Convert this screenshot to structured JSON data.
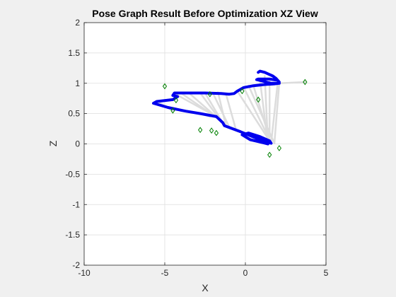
{
  "chart_data": {
    "type": "line",
    "title": "Pose Graph Result Before Optimization XZ View",
    "xlabel": "X",
    "ylabel": "Z",
    "xlim": [
      -10,
      5
    ],
    "ylim": [
      -2,
      2
    ],
    "xticks": [
      -10,
      -5,
      0,
      5
    ],
    "yticks": [
      -2,
      -1.5,
      -1,
      -0.5,
      0,
      0.5,
      1,
      1.5,
      2
    ],
    "xtick_labels": [
      "-10",
      "-5",
      "0",
      "5"
    ],
    "ytick_labels": [
      "-2",
      "-1.5",
      "-1",
      "-0.5",
      "0",
      "0.5",
      "1",
      "1.5",
      "2"
    ],
    "grid": true,
    "colors": {
      "trajectory": "#0000ee",
      "loop_edges": "#dcdcdc",
      "landmarks": "#008000",
      "grid": "#dedede",
      "axes_background": "#ffffff",
      "figure_background": "#f0f0f0"
    },
    "trajectory": {
      "x": [
        1.4,
        1.1,
        0.3,
        -0.2,
        0.2,
        0.9,
        1.5,
        1.6,
        1.0,
        -0.3,
        -1.3,
        -1.4,
        -1.6,
        -1.8,
        -2.8,
        -3.7,
        -4.8,
        -5.7,
        -5.5,
        -4.5,
        -4.2,
        -4.5,
        -4.4,
        -4.0,
        -3.5,
        -2.5,
        -1.5,
        -1.0,
        -0.7,
        -0.5,
        -0.1,
        0.5,
        1.2,
        1.8,
        2.1,
        2.0,
        1.6,
        1.3,
        1.0,
        0.7,
        0.8,
        1.5,
        2.0,
        2.1,
        1.9,
        1.7,
        1.2,
        0.9,
        0.8
      ],
      "z": [
        0.0,
        0.02,
        0.07,
        0.15,
        0.18,
        0.12,
        0.05,
        0.01,
        0.06,
        0.2,
        0.3,
        0.35,
        0.4,
        0.45,
        0.5,
        0.54,
        0.6,
        0.67,
        0.7,
        0.73,
        0.78,
        0.8,
        0.84,
        0.84,
        0.84,
        0.84,
        0.83,
        0.82,
        0.83,
        0.87,
        0.93,
        0.96,
        0.98,
        0.99,
        1.0,
        1.0,
        1.0,
        1.02,
        1.04,
        1.06,
        1.07,
        1.07,
        1.05,
        1.02,
        1.08,
        1.12,
        1.18,
        1.2,
        1.18
      ]
    },
    "loop_edges": [
      {
        "x": [
          -4.4,
          -1.8
        ],
        "z": [
          0.83,
          0.45
        ]
      },
      {
        "x": [
          -4.0,
          -1.6
        ],
        "z": [
          0.84,
          0.4
        ]
      },
      {
        "x": [
          -3.5,
          -1.4
        ],
        "z": [
          0.84,
          0.35
        ]
      },
      {
        "x": [
          -2.8,
          -1.3
        ],
        "z": [
          0.84,
          0.3
        ]
      },
      {
        "x": [
          -2.0,
          -1.0
        ],
        "z": [
          0.83,
          0.28
        ]
      },
      {
        "x": [
          -2.5,
          -1.3
        ],
        "z": [
          0.84,
          0.3
        ]
      },
      {
        "x": [
          -1.2,
          -0.6
        ],
        "z": [
          0.82,
          0.25
        ]
      },
      {
        "x": [
          -0.5,
          1.5
        ],
        "z": [
          0.87,
          0.05
        ]
      },
      {
        "x": [
          -0.1,
          1.6
        ],
        "z": [
          0.93,
          0.02
        ]
      },
      {
        "x": [
          0.2,
          1.8
        ],
        "z": [
          0.96,
          0.01
        ]
      },
      {
        "x": [
          0.5,
          1.6
        ],
        "z": [
          0.96,
          0.0
        ]
      },
      {
        "x": [
          0.9,
          1.4
        ],
        "z": [
          1.07,
          0.0
        ]
      },
      {
        "x": [
          1.2,
          1.4
        ],
        "z": [
          1.12,
          0.02
        ]
      },
      {
        "x": [
          1.5,
          1.5
        ],
        "z": [
          1.07,
          0.05
        ]
      },
      {
        "x": [
          2.0,
          1.6
        ],
        "z": [
          1.0,
          0.02
        ]
      },
      {
        "x": [
          2.1,
          1.8
        ],
        "z": [
          1.0,
          0.01
        ]
      },
      {
        "x": [
          -5.5,
          -4.5
        ],
        "z": [
          0.7,
          0.55
        ]
      },
      {
        "x": [
          -4.8,
          -4.0
        ],
        "z": [
          0.6,
          0.55
        ]
      },
      {
        "x": [
          -2.8,
          -2.2
        ],
        "z": [
          0.5,
          0.45
        ]
      },
      {
        "x": [
          -1.7,
          -1.2
        ],
        "z": [
          0.85,
          0.3
        ]
      },
      {
        "x": [
          2.1,
          3.7
        ],
        "z": [
          1.0,
          1.02
        ]
      }
    ],
    "landmarks": {
      "x": [
        -5.0,
        -4.3,
        -4.5,
        -2.8,
        -2.1,
        -1.8,
        -2.2,
        -0.2,
        0.8,
        1.5,
        2.1,
        3.7
      ],
      "z": [
        0.95,
        0.72,
        0.55,
        0.23,
        0.22,
        0.18,
        0.82,
        0.87,
        0.73,
        -0.18,
        -0.07,
        1.02
      ]
    }
  }
}
